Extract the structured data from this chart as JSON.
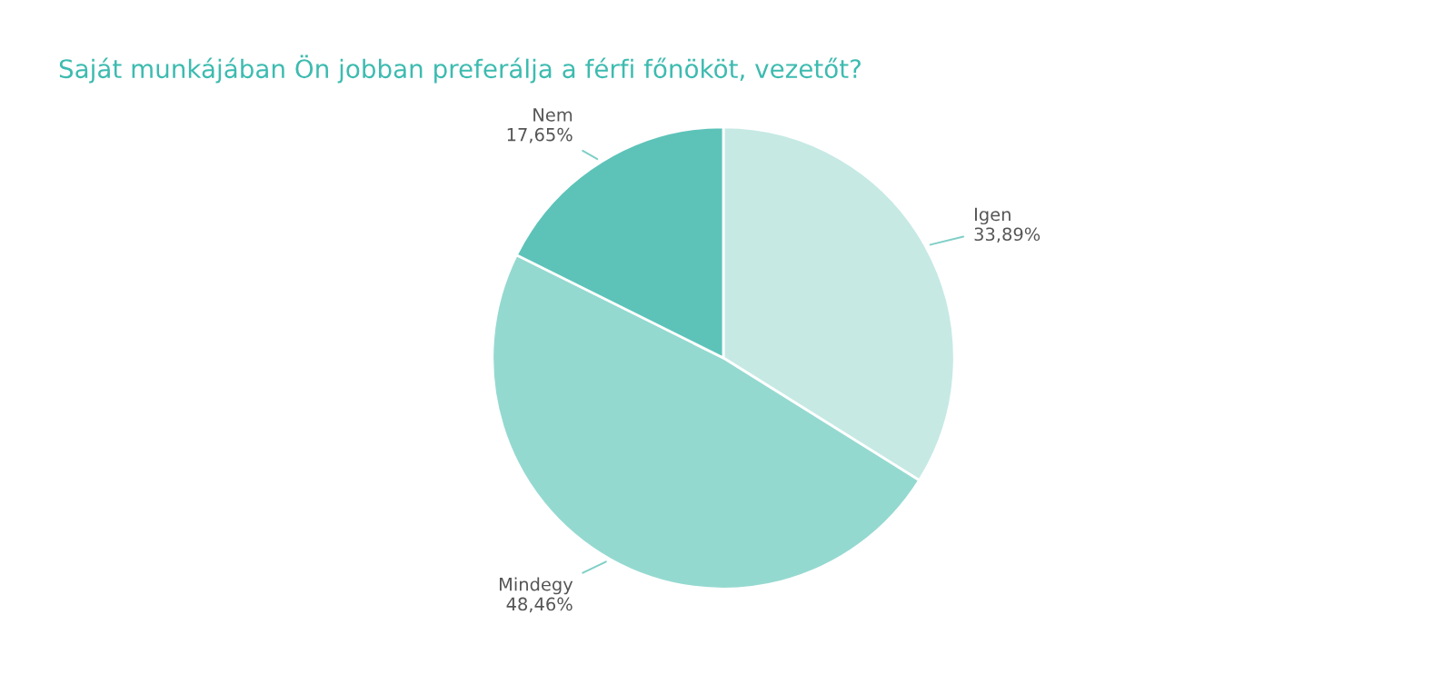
{
  "chart_data": {
    "type": "pie",
    "title": "Saját munkájában Ön jobban preferálja a férfi főnököt, vezetőt?",
    "categories": [
      "Igen",
      "Mindegy",
      "Nem"
    ],
    "values": [
      33.89,
      48.46,
      17.65
    ],
    "value_labels": [
      "33,89%",
      "48,46%",
      "17,65%"
    ],
    "colors": [
      "#c6e9e4",
      "#94d9d0",
      "#5dc3b9"
    ],
    "legend": false
  }
}
